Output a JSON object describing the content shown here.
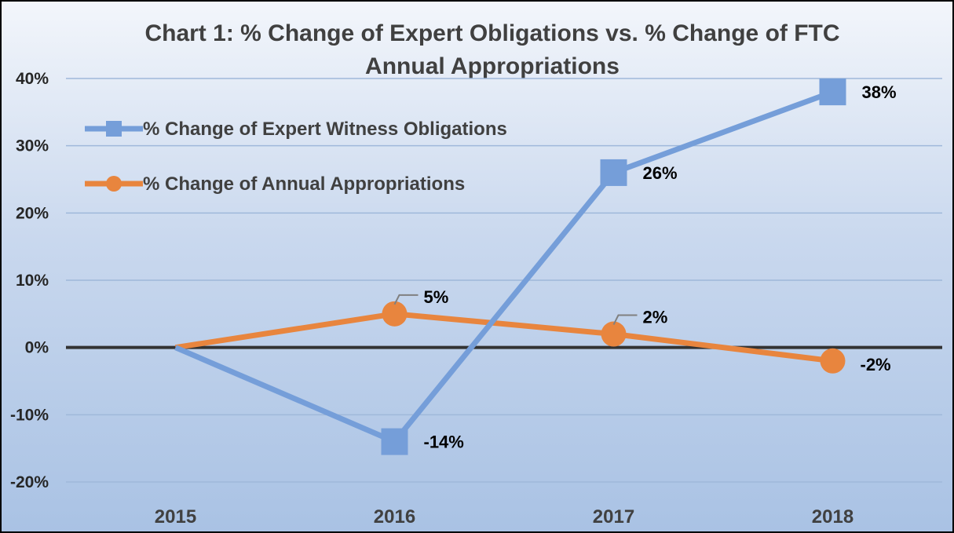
{
  "chart_data": {
    "type": "line",
    "title_lines": [
      "Chart 1: % Change of Expert Obligations vs. % Change of FTC",
      "Annual Appropriations"
    ],
    "categories": [
      "2015",
      "2016",
      "2017",
      "2018"
    ],
    "y_ticks": [
      "40%",
      "30%",
      "20%",
      "10%",
      "0%",
      "-10%",
      "-20%"
    ],
    "y_tick_values": [
      40,
      30,
      20,
      10,
      0,
      -10,
      -20
    ],
    "ylim": [
      -20,
      40
    ],
    "grid": true,
    "legend_position": "top-left",
    "series": [
      {
        "name": "% Change of Expert Witness Obligations",
        "values": [
          0,
          -14,
          26,
          38
        ],
        "labels": [
          "",
          "-14%",
          "26%",
          "38%"
        ],
        "color": "#759ED9",
        "marker": "square"
      },
      {
        "name": "% Change of Annual Appropriations",
        "values": [
          0,
          5,
          2,
          -2
        ],
        "labels": [
          "",
          "5%",
          "2%",
          "-2%"
        ],
        "color": "#E8853E",
        "marker": "circle"
      }
    ]
  }
}
